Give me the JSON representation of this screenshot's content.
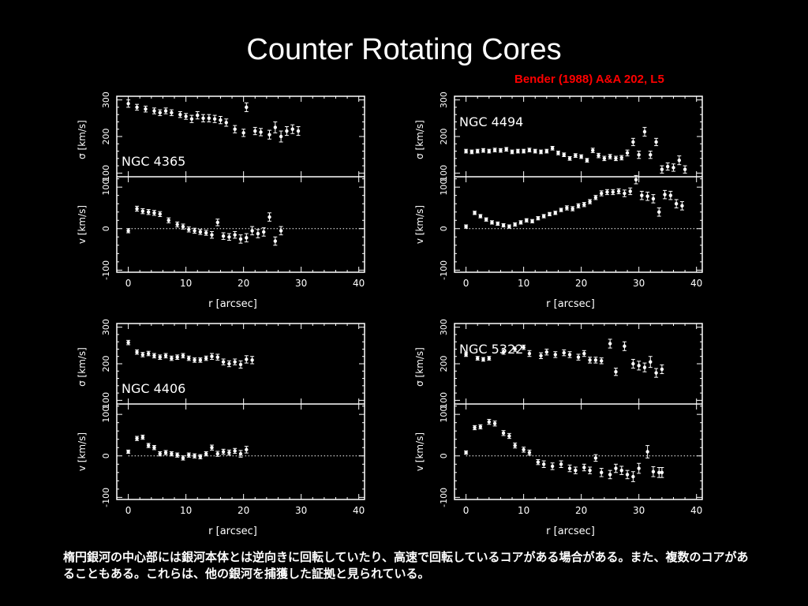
{
  "slide": {
    "title": "Counter Rotating Cores",
    "citation": "Bender (1988) A&A 202, L5",
    "caption": "楕円銀河の中心部には銀河本体とは逆向きに回転していたり、高速で回転しているコアがある場合がある。また、複数のコアがあることもある。これらは、他の銀河を捕獲した証拠と見られている。"
  },
  "colors": {
    "background": "#000000",
    "foreground": "#ffffff",
    "citation": "#ff0000"
  },
  "chart_data": [
    {
      "type": "scatter",
      "name": "NGC 4365",
      "xlabel": "r [arcsec]",
      "ylabel_sigma": "σ [km/s]",
      "ylabel_v": "v [km/s]",
      "xlim": [
        -2,
        41
      ],
      "sigma_lim": [
        90,
        310
      ],
      "v_lim": [
        -105,
        125
      ],
      "x_ticks": [
        0,
        10,
        20,
        30,
        40
      ],
      "sigma_ticks": [
        100,
        200,
        300
      ],
      "v_ticks": [
        -100,
        0,
        100
      ],
      "sigma": {
        "x": [
          0,
          1.5,
          3,
          4.5,
          5.5,
          6.5,
          7.5,
          9,
          10,
          11,
          12,
          13,
          14,
          15,
          16,
          17,
          18.5,
          20,
          20.5,
          22,
          23,
          24.5,
          25.5,
          26.5,
          27.5,
          28.5,
          29.5
        ],
        "y": [
          290,
          280,
          275,
          270,
          265,
          270,
          265,
          260,
          255,
          248,
          258,
          250,
          250,
          248,
          245,
          238,
          220,
          210,
          280,
          215,
          212,
          205,
          225,
          200,
          215,
          220,
          215
        ],
        "err": [
          10,
          8,
          8,
          8,
          8,
          8,
          8,
          8,
          8,
          10,
          10,
          10,
          10,
          10,
          10,
          10,
          10,
          10,
          12,
          10,
          10,
          12,
          15,
          15,
          12,
          12,
          12
        ]
      },
      "v": {
        "x": [
          0,
          1.5,
          2.5,
          3.5,
          4.5,
          5.5,
          7,
          8.5,
          9.5,
          10.5,
          11.5,
          12.5,
          13.5,
          14.5,
          15.5,
          16.5,
          17.5,
          18.5,
          19.5,
          20.5,
          21.5,
          22.5,
          23.5,
          24.5,
          25.5,
          26.5
        ],
        "y": [
          -5,
          48,
          42,
          40,
          38,
          35,
          20,
          10,
          5,
          -2,
          -5,
          -8,
          -10,
          -15,
          15,
          -18,
          -20,
          -15,
          -25,
          -22,
          -5,
          -12,
          -8,
          28,
          -30,
          -5
        ],
        "err": [
          5,
          6,
          6,
          6,
          6,
          6,
          6,
          6,
          6,
          6,
          6,
          6,
          6,
          8,
          8,
          8,
          8,
          8,
          10,
          10,
          10,
          10,
          10,
          10,
          10,
          10
        ]
      }
    },
    {
      "type": "scatter",
      "name": "NGC 4494",
      "xlabel": "r [arcsec]",
      "ylabel_sigma": "σ [km/s]",
      "ylabel_v": "v [km/s]",
      "xlim": [
        -2,
        41
      ],
      "sigma_lim": [
        90,
        310
      ],
      "v_lim": [
        -105,
        125
      ],
      "x_ticks": [
        0,
        10,
        20,
        30,
        40
      ],
      "sigma_ticks": [
        100,
        200,
        300
      ],
      "v_ticks": [
        -100,
        0,
        100
      ],
      "sigma": {
        "x": [
          0,
          1,
          2,
          3,
          4,
          5,
          6,
          7,
          8,
          9,
          10,
          11,
          12,
          13,
          14,
          15,
          16,
          17,
          18,
          19,
          20,
          21,
          22,
          23,
          24,
          25,
          26,
          27,
          28,
          29,
          30,
          31,
          32,
          33,
          34,
          35,
          36,
          37,
          38
        ],
        "y": [
          160,
          158,
          160,
          162,
          160,
          163,
          162,
          165,
          158,
          160,
          160,
          163,
          160,
          158,
          160,
          168,
          155,
          150,
          140,
          148,
          145,
          135,
          162,
          148,
          140,
          145,
          140,
          142,
          155,
          185,
          150,
          213,
          150,
          185,
          110,
          118,
          115,
          135,
          110
        ],
        "err": [
          5,
          5,
          5,
          5,
          5,
          5,
          5,
          5,
          5,
          5,
          5,
          5,
          5,
          5,
          5,
          5,
          5,
          5,
          5,
          5,
          5,
          5,
          6,
          6,
          6,
          6,
          6,
          6,
          8,
          10,
          10,
          12,
          10,
          10,
          10,
          10,
          10,
          12,
          10
        ]
      },
      "v": {
        "x": [
          0,
          1.5,
          2.5,
          3.5,
          4.5,
          5.5,
          6.5,
          7.5,
          8.5,
          9.5,
          10.5,
          11.5,
          12.5,
          13.5,
          14.5,
          15.5,
          16.5,
          17.5,
          18.5,
          19.5,
          20.5,
          21.5,
          22.5,
          23.5,
          24.5,
          25.5,
          26.5,
          27.5,
          28.5,
          29.5,
          30.5,
          31.5,
          32.5,
          33.5,
          34.5,
          35.5,
          36.5,
          37.5
        ],
        "y": [
          5,
          38,
          30,
          22,
          15,
          12,
          8,
          5,
          10,
          15,
          20,
          18,
          25,
          30,
          35,
          38,
          45,
          50,
          48,
          55,
          58,
          65,
          75,
          85,
          88,
          88,
          90,
          85,
          90,
          118,
          80,
          78,
          72,
          40,
          82,
          80,
          60,
          55
        ],
        "err": [
          4,
          4,
          4,
          4,
          4,
          4,
          4,
          4,
          4,
          4,
          4,
          4,
          4,
          4,
          4,
          4,
          4,
          5,
          5,
          5,
          5,
          5,
          5,
          6,
          6,
          6,
          6,
          8,
          8,
          10,
          10,
          10,
          10,
          10,
          10,
          10,
          10,
          10
        ]
      }
    },
    {
      "type": "scatter",
      "name": "NGC 4406",
      "xlabel": "r [arcsec]",
      "ylabel_sigma": "σ [km/s]",
      "ylabel_v": "v [km/s]",
      "xlim": [
        -2,
        41
      ],
      "sigma_lim": [
        90,
        310
      ],
      "v_lim": [
        -105,
        125
      ],
      "x_ticks": [
        0,
        10,
        20,
        30,
        40
      ],
      "sigma_ticks": [
        100,
        200,
        300
      ],
      "v_ticks": [
        -100,
        0,
        100
      ],
      "sigma": {
        "x": [
          0,
          1.5,
          2.5,
          3.5,
          4.5,
          5.5,
          6.5,
          7.5,
          8.5,
          9.5,
          10.5,
          11.5,
          12.5,
          13.5,
          14.5,
          15.5,
          16.5,
          17.5,
          18.5,
          19.5,
          20.5,
          21.5
        ],
        "y": [
          258,
          232,
          225,
          228,
          222,
          218,
          222,
          215,
          218,
          222,
          215,
          210,
          210,
          215,
          220,
          218,
          205,
          200,
          205,
          198,
          212,
          210
        ],
        "err": [
          6,
          6,
          6,
          6,
          6,
          6,
          6,
          6,
          6,
          6,
          6,
          6,
          6,
          6,
          8,
          8,
          8,
          8,
          8,
          10,
          10,
          10
        ]
      },
      "v": {
        "x": [
          0,
          1.5,
          2.5,
          3.5,
          4.5,
          5.5,
          6.5,
          7.5,
          8.5,
          9.5,
          10.5,
          11.5,
          12.5,
          13.5,
          14.5,
          15.5,
          16.5,
          17.5,
          18.5,
          19.5,
          20.5
        ],
        "y": [
          10,
          42,
          45,
          25,
          20,
          5,
          8,
          5,
          2,
          -5,
          2,
          0,
          -2,
          5,
          20,
          5,
          10,
          8,
          12,
          5,
          15
        ],
        "err": [
          4,
          5,
          5,
          5,
          5,
          5,
          5,
          5,
          5,
          5,
          5,
          5,
          5,
          5,
          6,
          6,
          6,
          6,
          6,
          8,
          8
        ]
      }
    },
    {
      "type": "scatter",
      "name": "NGC 5322",
      "xlabel": "r [arcsec]",
      "ylabel_sigma": "σ [km/s]",
      "ylabel_v": "v [km/s]",
      "xlim": [
        -2,
        41
      ],
      "sigma_lim": [
        90,
        310
      ],
      "v_lim": [
        -105,
        125
      ],
      "x_ticks": [
        0,
        10,
        20,
        30,
        40
      ],
      "sigma_ticks": [
        100,
        200,
        300
      ],
      "v_ticks": [
        -100,
        0,
        100
      ],
      "sigma": {
        "x": [
          0,
          2,
          3,
          4,
          6.5,
          8.5,
          10,
          11,
          13,
          14,
          15.5,
          17,
          18,
          19.5,
          20.5,
          21.5,
          22.5,
          23.5,
          25,
          26,
          27.5,
          29,
          30,
          31,
          32,
          33,
          34
        ],
        "y": [
          225,
          215,
          212,
          215,
          232,
          240,
          245,
          228,
          222,
          232,
          225,
          230,
          225,
          218,
          228,
          210,
          210,
          208,
          255,
          178,
          248,
          200,
          195,
          190,
          205,
          175,
          185
        ],
        "err": [
          5,
          5,
          5,
          5,
          6,
          6,
          6,
          8,
          8,
          8,
          8,
          8,
          8,
          8,
          8,
          8,
          8,
          8,
          12,
          10,
          12,
          12,
          12,
          12,
          15,
          12,
          12
        ]
      },
      "v": {
        "x": [
          0,
          1.5,
          2.5,
          4,
          5,
          6.5,
          7.5,
          8.5,
          10,
          11,
          12.5,
          13.5,
          15,
          16.5,
          18,
          19,
          20.5,
          21.5,
          22.5,
          23.5,
          25,
          26,
          27,
          28,
          29,
          30,
          31.5,
          32.5,
          33.5,
          34
        ],
        "y": [
          8,
          68,
          70,
          82,
          78,
          55,
          48,
          25,
          15,
          8,
          -15,
          -20,
          -25,
          -20,
          -30,
          -35,
          -28,
          -35,
          -5,
          -40,
          -45,
          -30,
          -35,
          -45,
          -50,
          -30,
          10,
          -38,
          -40,
          -40
        ],
        "err": [
          4,
          5,
          5,
          6,
          6,
          6,
          6,
          6,
          6,
          6,
          6,
          8,
          8,
          8,
          8,
          8,
          8,
          8,
          8,
          10,
          10,
          10,
          10,
          10,
          12,
          12,
          15,
          12,
          12,
          12
        ]
      }
    }
  ]
}
